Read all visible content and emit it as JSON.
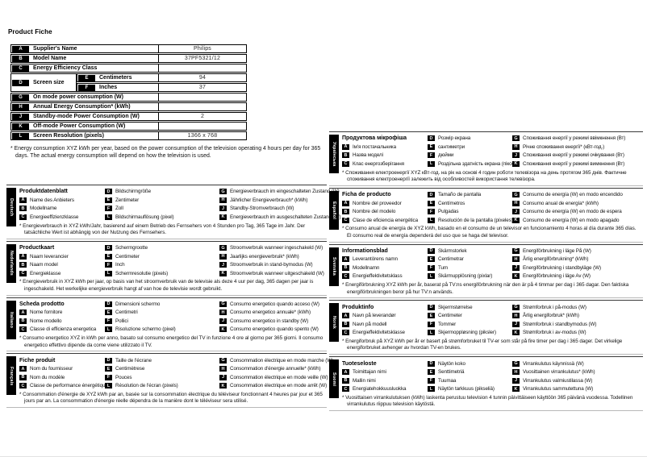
{
  "page_title": "Product Fiche",
  "keys": {
    "a": "A",
    "b": "B",
    "c": "C",
    "d": "D",
    "e": "E",
    "f": "F",
    "g": "G",
    "h": "H",
    "j": "J",
    "k": "K",
    "l": "L"
  },
  "table": {
    "rows": [
      {
        "key": "A",
        "label": "Supplier's Name",
        "value": "Philips"
      },
      {
        "key": "B",
        "label": "Model Name",
        "value": "37PF5321/12"
      },
      {
        "key": "C",
        "label": "Energy Efficiency Class",
        "value": ""
      },
      {
        "key": "G",
        "label": "On mode power consumption (W)",
        "value": ""
      },
      {
        "key": "H",
        "label": "Annual Energy Consumption* (kWh)",
        "value": ""
      },
      {
        "key": "J",
        "label": "Standby-mode Power Consumption (W)",
        "value": "2"
      },
      {
        "key": "K",
        "label": "Off-mode Power Consumption (W)",
        "value": ""
      },
      {
        "key": "L",
        "label": "Screen Resolution (pixels)",
        "value": "1366 x 768"
      }
    ],
    "screen_size": {
      "key": "D",
      "label": "Screen size",
      "sub": [
        {
          "key": "E",
          "label": "Centimeters",
          "value": "94"
        },
        {
          "key": "F",
          "label": "Inches",
          "value": "37"
        }
      ]
    }
  },
  "footnote": "* Energy consumption XYZ kWh per year, based on the power consumption of the television operating 4 hours per day for 365 days. The actual energy consumption will depend on how the television is used.",
  "sections_left": [
    {
      "language": "Deutsch",
      "title": "Produktdatenblatt",
      "items": {
        "A": "Name des Anbieters",
        "B": "Modellname",
        "C": "Energieeffizienzklasse",
        "D": "Bildschirmgröße",
        "E": "Zentimeter",
        "F": "Zoll",
        "L": "Bildschirmauflösung (pixel)",
        "G": "Energieverbrauch im eingeschalteten Zustand (W)",
        "H": "Jährlicher Energieverbrauch* (kWh)",
        "J": "Standby-Stromverbrauch (W)",
        "K": "Energieverbrauch im ausgeschalteten Zustand (W)"
      },
      "footnote": "* Energieverbrauch in XYZ kWh/Jahr, basierend auf einem Betrieb des Fernsehers von 4 Stunden pro Tag, 365 Tage im Jahr. Der tatsächliche Wert ist abhängig von der Nutzung des Fernsehers."
    },
    {
      "language": "Nederlands",
      "title": "Productkaart",
      "items": {
        "A": "Naam leverancier",
        "B": "Naam model",
        "C": "Energieklasse",
        "D": "Schermgrootte",
        "E": "Centimeter",
        "F": "Inch",
        "L": "Schermresolutie (pixels)",
        "G": "Stroomverbruik wanneer ingeschakeld (W)",
        "H": "Jaarlijks energieverbruik* (kWh)",
        "J": "Stroomverbruik in stand-bymodus (W)",
        "K": "Stroomverbruik wanneer uitgeschakeld (W)"
      },
      "footnote": "* Energieverbruik in XYZ kWh per jaar, op basis van het stroomverbruik van de televisie als deze 4 uur per dag, 365 dagen per jaar is ingeschakeld. Het werkelijke energieverbruik hangt af van hoe de televisie wordt gebruikt."
    },
    {
      "language": "Italiano",
      "title": "Scheda prodotto",
      "items": {
        "A": "Nome fornitore",
        "B": "Nome modello",
        "C": "Classe di efficienza energetica",
        "D": "Dimensioni schermo",
        "E": "Centimetri",
        "F": "Pollici",
        "L": "Risoluzione schermo (pixel)",
        "G": "Consumo energetico quando acceso (W)",
        "H": "Consumo energetico annuale* (kWh)",
        "J": "Consumo energetico in standby (W)",
        "K": "Consumo energetico quando spento (W)"
      },
      "footnote": "* Consumo energetico XYZ in kWh per anno, basato sul consumo energetico del TV in funzione 4 ore al giorno per 365 giorni. Il consumo energetico effettivo dipende da come viene utilizzato il TV."
    },
    {
      "language": "Français",
      "title": "Fiche produit",
      "items": {
        "A": "Nom du fournisseur",
        "B": "Nom du modèle",
        "C": "Classe de performance énergétique",
        "D": "Taille de l'écrane",
        "E": "Centimètrese",
        "F": "Pouces",
        "L": "Résolution de l'écran (pixels)",
        "G": "Consommation électrique en mode marche (W)",
        "H": "Consommation d'énergie annuelle* (kWh)",
        "J": "Consommation électrique en mode veille (W)",
        "K": "Consommation électrique en mode arrêt (W)"
      },
      "footnote": "* Consommation d'énergie de XYZ kWh par an, basée sur la consommation électrique du téléviseur fonctionnant 4 heures par jour et 365 jours par an. La consommation d'énergie réelle dépendra de la manière dont le téléviseur sera utilisé."
    }
  ],
  "sections_right": [
    {
      "language": "Українська",
      "title": "Продуктова мікрофіша",
      "items": {
        "A": "Ім'я постачальника",
        "B": "Назва моделі",
        "C": "Клас енергозберігання",
        "D": "Розмір екрана",
        "E": "сантиметри",
        "F": "дюйми",
        "L": "Роздільна здатність екрана (піксел)",
        "G": "Споживання енергії у режимі ввімкнення (Вт)",
        "H": "Річне споживання енергії* (кВт-год.)",
        "J": "Споживання енергії у режимі очікування (Вт)",
        "K": "Споживання енергії у режимі вимкнення (Вт)"
      },
      "footnote": "* Споживання електроенергії XYZ кВт-год. на рік на основі 4 годин роботи телевізора на день протягом 365 днів. Фактичне споживання електроенергії залежить від особливостей використання телевізора."
    },
    {
      "language": "Español",
      "title": "Ficha de producto",
      "items": {
        "A": "Nombre del proveedor",
        "B": "Nombre del modelo",
        "C": "Clase de eficiencia energética",
        "D": "Tamaño de pantalla",
        "E": "Centímetros",
        "F": "Pulgadas",
        "L": "Resolución de la pantalla (píxeles)",
        "G": "Consumo de energía (W) en modo encendido",
        "H": "Consumo anual de energía* (kWh)",
        "J": "Consumo de energía (W) en modo de espera",
        "K": "Consumo de energía (W) en modo apagado"
      },
      "footnote": "* Consumo anual de energía de XYZ kWh, basado en el consumo de un televisor en funcionamiento 4 horas al día durante 365 días. El consumo real de energía dependerá del uso que se haga del televisor."
    },
    {
      "language": "Svenska",
      "title": "Informationsblad",
      "items": {
        "A": "Leverantörens namn",
        "B": "Modellnamn",
        "C": "Energieffektivitetsklass",
        "D": "Skärmstorlek",
        "E": "Centimetrar",
        "F": "Tum",
        "L": "Skärmupplösning (pixlar)",
        "G": "Energiförbrukning i läge På (W)",
        "H": "Årlig energiförbrukning* (kWh)",
        "J": "Energiförbrukning i standbyläge (W)",
        "K": "Energiförbrukning i läge Av (W)"
      },
      "footnote": "* Energiförbrukning XYZ kWh per år, baserat på TV:ns energiförbrukning när den är på 4 timmar per dag i 365 dagar. Den faktiska energiförbrukningen beror på hur TV:n används."
    },
    {
      "language": "Norsk",
      "title": "Produktinfo",
      "items": {
        "A": "Navn på leverandør",
        "B": "Navn på modell",
        "C": "Energieffektivitetsklasse",
        "D": "Skjermstørrelse",
        "E": "Centimeter",
        "F": "Tommer",
        "L": "Skjermoppløsning (piksler)",
        "G": "Strømforbruk i på-modus (W)",
        "H": "Årlig energiforbruk* (kWh)",
        "J": "Strømforbruk i standbymodus (W)",
        "K": "Strømforbruk i av-modus (W)"
      },
      "footnote": "* Energiforbruk på XYZ kWh per år er basert på strømforbruket til TV-er som står på fire timer per dag i 365 dager. Det virkelige energiforbruket avhenger av hvordan TV-en brukes."
    },
    {
      "language": "Suomi",
      "title": "Tuoteseloste",
      "items": {
        "A": "Toimittajan nimi",
        "B": "Mallin nimi",
        "C": "Energiatehokkuusluokka",
        "D": "Näytön koko",
        "E": "Senttimetriä",
        "F": "Tuumaa",
        "L": "Näytön tarkkuus (pikseliä)",
        "G": "Virrankulutus käynnissä (W)",
        "H": "Vuosittainen virrankulutus* (kWh)",
        "J": "Virrankulutus valmiustilassa (W)",
        "K": "Virrankulutus sammutettuna (W)"
      },
      "footnote": "* Vuosittaisen virrankulutuksen (kWh) laskenta perustuu television 4 tunnin päivittäiseen käyttöön 365 päivänä vuodessa. Todellinen virrankulutus riippuu television käytöstä."
    }
  ]
}
